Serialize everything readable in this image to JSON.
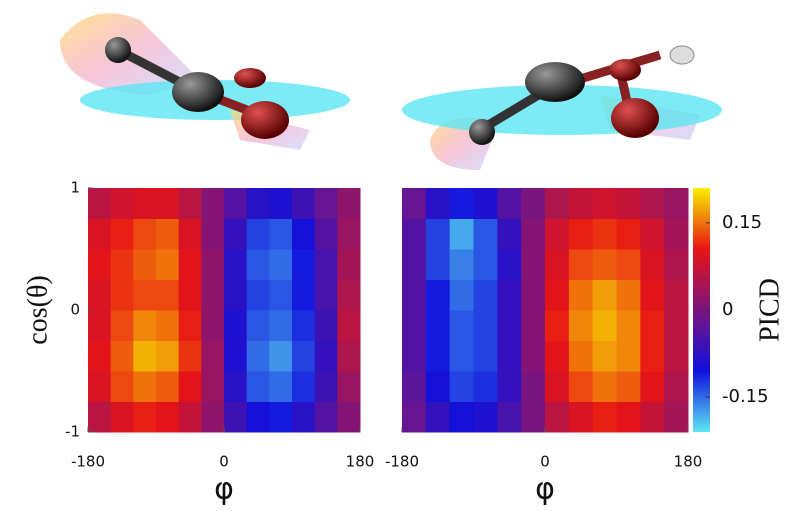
{
  "chart_data": [
    {
      "type": "heatmap",
      "xlabel": "φ",
      "ylabel": "cos(θ)",
      "xbins": [
        -180,
        -150,
        -120,
        -90,
        -60,
        -30,
        0,
        30,
        60,
        90,
        120,
        150,
        180
      ],
      "ybins": [
        -1,
        -0.75,
        -0.5,
        -0.25,
        0,
        0.25,
        0.5,
        0.75,
        1
      ],
      "xlim": [
        -180,
        180
      ],
      "ylim": [
        -1,
        1
      ],
      "xticks": [
        -180,
        0,
        180
      ],
      "yticks": [
        -1,
        0,
        1
      ],
      "zlim": [
        -0.21,
        0.21
      ],
      "colormap": [
        "#5ce6f2",
        "#1010dd",
        "#7a1580",
        "#e81414",
        "#f8f000"
      ],
      "z": [
        [
          0.06,
          0.09,
          0.11,
          0.1,
          0.07,
          0.02,
          -0.06,
          -0.1,
          -0.11,
          -0.08,
          -0.04,
          0.01
        ],
        [
          0.09,
          0.13,
          0.15,
          0.14,
          0.1,
          0.03,
          -0.08,
          -0.14,
          -0.15,
          -0.12,
          -0.06,
          0.03
        ],
        [
          0.1,
          0.14,
          0.18,
          0.17,
          0.12,
          0.03,
          -0.09,
          -0.15,
          -0.17,
          -0.13,
          -0.07,
          0.05
        ],
        [
          0.09,
          0.13,
          0.16,
          0.15,
          0.11,
          0.02,
          -0.09,
          -0.14,
          -0.15,
          -0.12,
          -0.06,
          0.06
        ],
        [
          0.09,
          0.12,
          0.13,
          0.13,
          0.1,
          0.02,
          -0.08,
          -0.13,
          -0.14,
          -0.11,
          -0.05,
          0.05
        ],
        [
          0.1,
          0.12,
          0.14,
          0.15,
          0.1,
          0.02,
          -0.08,
          -0.14,
          -0.15,
          -0.11,
          -0.05,
          0.04
        ],
        [
          0.09,
          0.11,
          0.13,
          0.14,
          0.09,
          0.01,
          -0.07,
          -0.13,
          -0.14,
          -0.1,
          -0.04,
          0.03
        ],
        [
          0.06,
          0.08,
          0.09,
          0.09,
          0.06,
          0.01,
          -0.04,
          -0.08,
          -0.09,
          -0.06,
          -0.02,
          0.02
        ]
      ]
    },
    {
      "type": "heatmap",
      "xlabel": "φ",
      "xbins": [
        -180,
        -150,
        -120,
        -90,
        -60,
        -30,
        0,
        30,
        60,
        90,
        120,
        150,
        180
      ],
      "ybins": [
        -1,
        -0.75,
        -0.5,
        -0.25,
        0,
        0.25,
        0.5,
        0.75,
        1
      ],
      "xlim": [
        -180,
        180
      ],
      "ylim": [
        -1,
        1
      ],
      "xticks": [
        -180,
        0,
        180
      ],
      "zlim": [
        -0.21,
        0.21
      ],
      "colormap": [
        "#5ce6f2",
        "#1010dd",
        "#7a1580",
        "#e81414",
        "#f8f000"
      ],
      "colorbar": {
        "label": "PICD",
        "ticks": [
          0.15,
          0,
          -0.15
        ]
      },
      "z": [
        [
          -0.02,
          -0.07,
          -0.1,
          -0.09,
          -0.05,
          0.0,
          0.06,
          0.09,
          0.11,
          0.1,
          0.07,
          0.04
        ],
        [
          -0.03,
          -0.1,
          -0.13,
          -0.12,
          -0.07,
          0.0,
          0.09,
          0.13,
          0.15,
          0.14,
          0.1,
          0.05
        ],
        [
          -0.04,
          -0.11,
          -0.14,
          -0.13,
          -0.07,
          0.01,
          0.1,
          0.15,
          0.17,
          0.16,
          0.11,
          0.06
        ],
        [
          -0.04,
          -0.11,
          -0.14,
          -0.13,
          -0.07,
          0.01,
          0.11,
          0.16,
          0.18,
          0.16,
          0.11,
          0.06
        ],
        [
          -0.04,
          -0.11,
          -0.15,
          -0.13,
          -0.07,
          0.01,
          0.1,
          0.15,
          0.17,
          0.15,
          0.1,
          0.06
        ],
        [
          -0.04,
          -0.13,
          -0.16,
          -0.14,
          -0.08,
          0.01,
          0.09,
          0.13,
          0.14,
          0.13,
          0.09,
          0.05
        ],
        [
          -0.04,
          -0.13,
          -0.18,
          -0.14,
          -0.07,
          0.01,
          0.08,
          0.11,
          0.12,
          0.11,
          0.08,
          0.04
        ],
        [
          -0.02,
          -0.08,
          -0.11,
          -0.09,
          -0.04,
          0.0,
          0.05,
          0.07,
          0.08,
          0.07,
          0.05,
          0.03
        ]
      ]
    }
  ]
}
